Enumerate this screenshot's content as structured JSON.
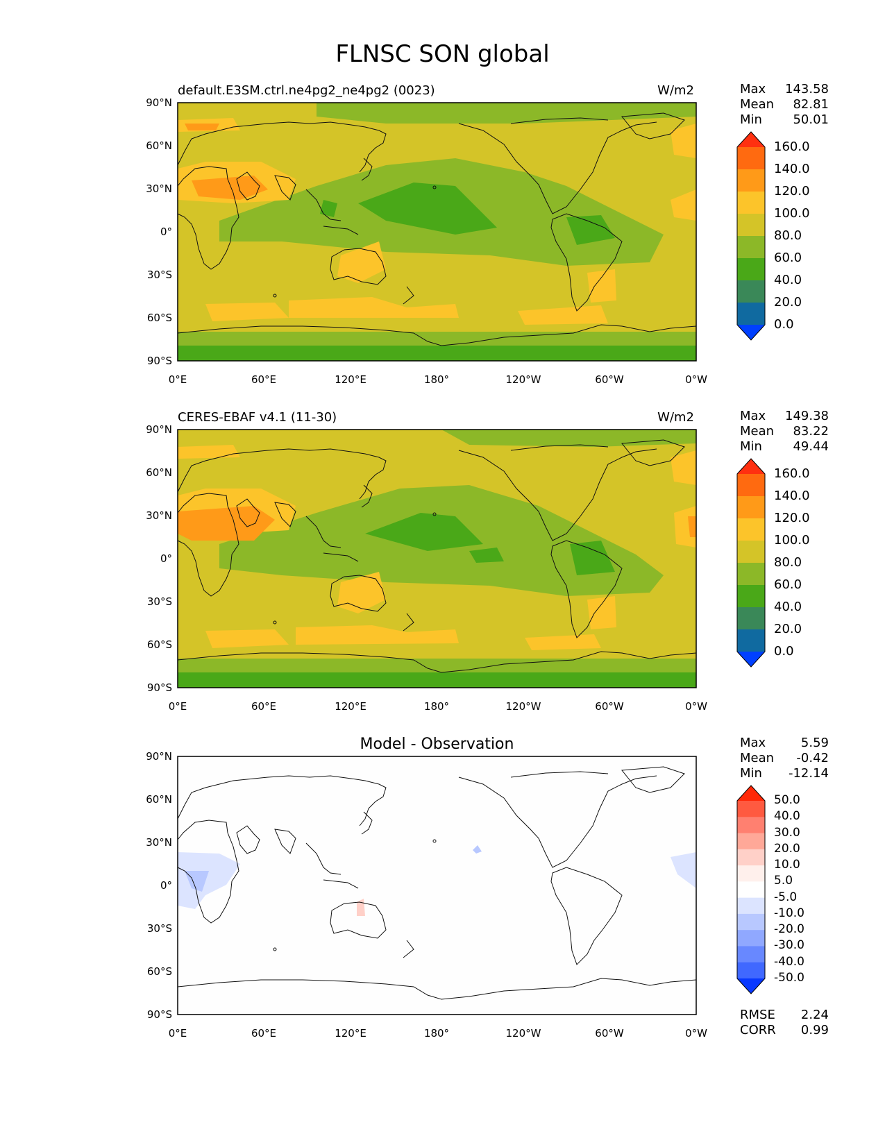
{
  "title": "FLNSC SON global",
  "lat_labels": [
    "90°N",
    "60°N",
    "30°N",
    "0°",
    "30°S",
    "60°S",
    "90°S"
  ],
  "lon_labels": [
    "0°E",
    "60°E",
    "120°E",
    "180°",
    "120°W",
    "60°W",
    "0°W"
  ],
  "panels": [
    {
      "title_left": "default.E3SM.ctrl.ne4pg2_ne4pg2 (0023)",
      "units": "W/m2",
      "stats": {
        "max_label": "Max",
        "max": "143.58",
        "mean_label": "Mean",
        "mean": "82.81",
        "min_label": "Min",
        "min": "50.01"
      }
    },
    {
      "title_left": "CERES-EBAF v4.1 (11-30)",
      "units": "W/m2",
      "stats": {
        "max_label": "Max",
        "max": "149.38",
        "mean_label": "Mean",
        "mean": "83.22",
        "min_label": "Min",
        "min": "49.44"
      }
    },
    {
      "title_center": "Model - Observation",
      "stats": {
        "max_label": "Max",
        "max": "5.59",
        "mean_label": "Mean",
        "mean": "-0.42",
        "min_label": "Min",
        "min": "-12.14"
      },
      "extra": {
        "rmse_label": "RMSE",
        "rmse": "2.24",
        "corr_label": "CORR",
        "corr": "0.99"
      }
    }
  ],
  "colorbar_main": {
    "labels": [
      "160.0",
      "140.0",
      "120.0",
      "100.0",
      "80.0",
      "60.0",
      "40.0",
      "20.0",
      "0.0"
    ],
    "colors": [
      "#ff3010",
      "#ff6a10",
      "#ff9a18",
      "#fcc42a",
      "#d4c428",
      "#8cb828",
      "#4aa818",
      "#3a8858",
      "#106aa0",
      "#0040ff"
    ]
  },
  "colorbar_diff": {
    "labels": [
      "50.0",
      "40.0",
      "30.0",
      "20.0",
      "10.0",
      "5.0",
      "-5.0",
      "-10.0",
      "-20.0",
      "-30.0",
      "-40.0",
      "-50.0"
    ],
    "colors": [
      "#ff2808",
      "#ff5a40",
      "#ff8070",
      "#ffa898",
      "#ffd0c8",
      "#fff0ec",
      "#ffffff",
      "#dce4ff",
      "#b8c8ff",
      "#90a8ff",
      "#6888ff",
      "#4068ff",
      "#0838ff"
    ]
  },
  "chart_data": [
    {
      "type": "heatmap",
      "title": "default.E3SM.ctrl.ne4pg2_ne4pg2 (0023)",
      "units": "W/m2",
      "levels": [
        0,
        20,
        40,
        60,
        80,
        100,
        120,
        140,
        160
      ],
      "max": 143.58,
      "mean": 82.81,
      "min": 50.01
    },
    {
      "type": "heatmap",
      "title": "CERES-EBAF v4.1 (11-30)",
      "units": "W/m2",
      "levels": [
        0,
        20,
        40,
        60,
        80,
        100,
        120,
        140,
        160
      ],
      "max": 149.38,
      "mean": 83.22,
      "min": 49.44
    },
    {
      "type": "heatmap",
      "title": "Model - Observation",
      "levels": [
        -50,
        -40,
        -30,
        -20,
        -10,
        -5,
        5,
        10,
        20,
        30,
        40,
        50
      ],
      "max": 5.59,
      "mean": -0.42,
      "min": -12.14,
      "rmse": 2.24,
      "corr": 0.99
    }
  ]
}
